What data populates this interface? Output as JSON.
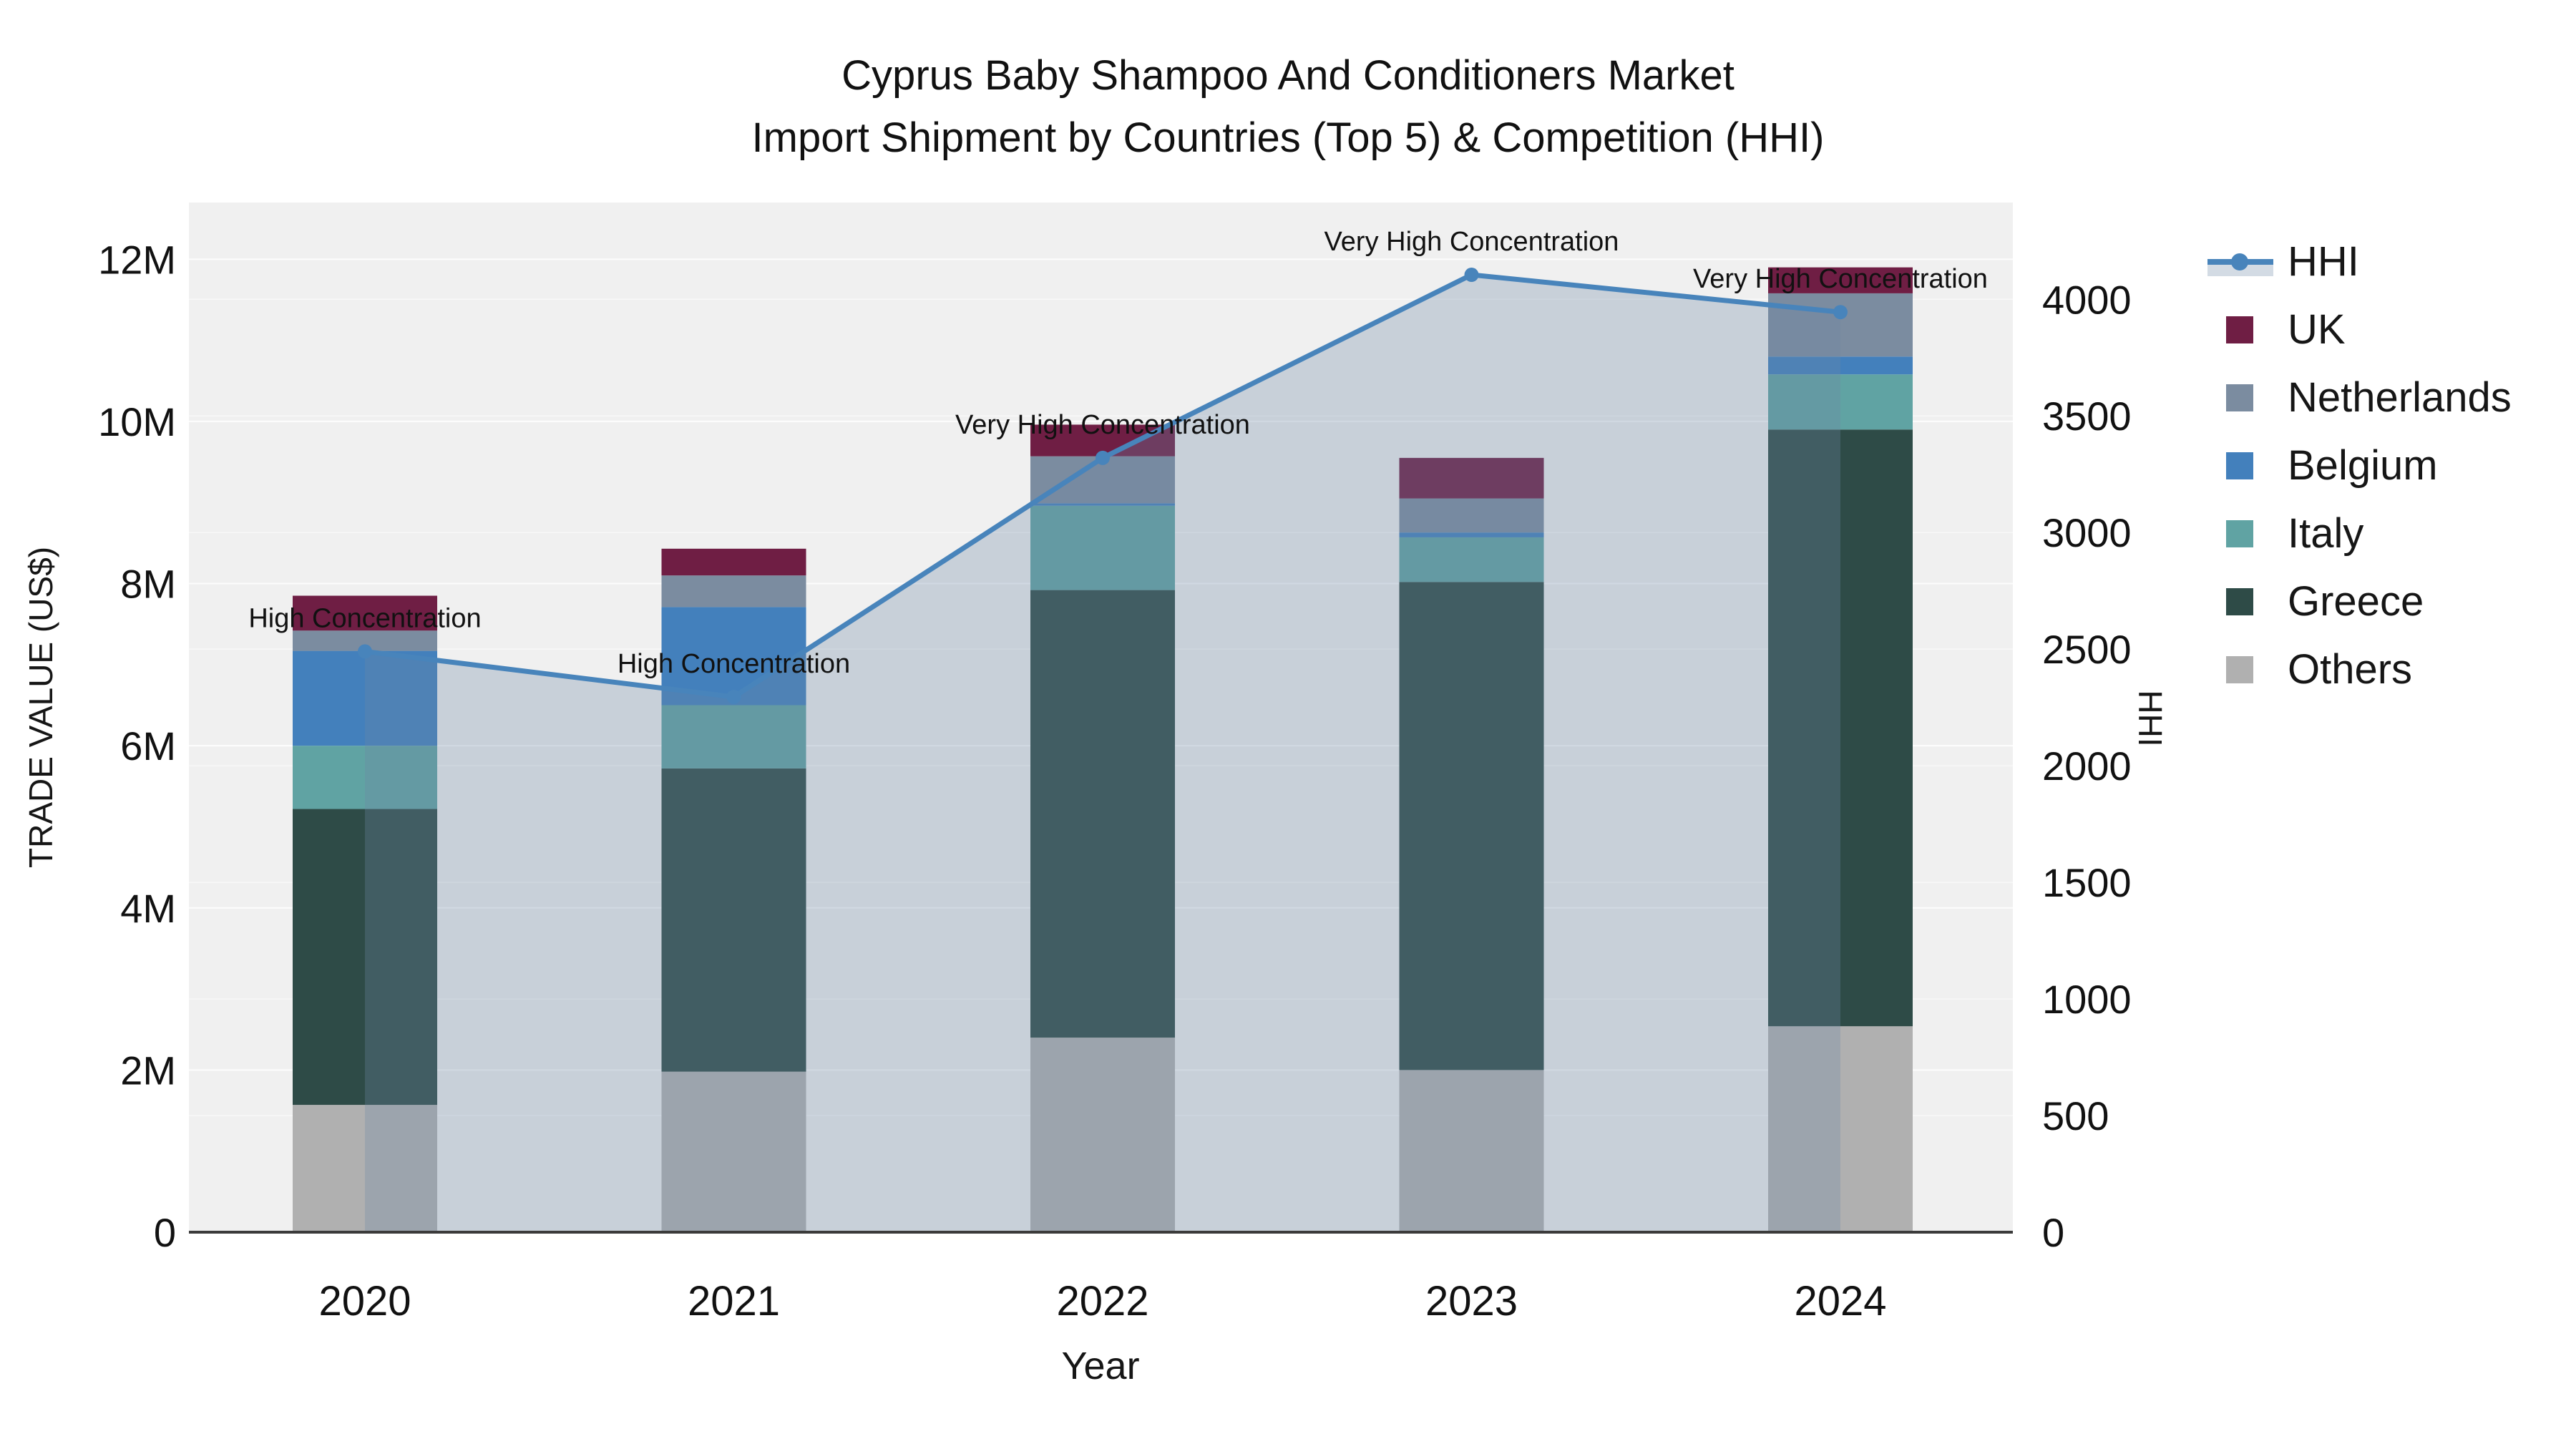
{
  "title": {
    "line1": "Cyprus Baby Shampoo And Conditioners Market",
    "line2": "Import Shipment by Countries (Top 5) & Competition (HHI)"
  },
  "axes": {
    "x": {
      "label": "Year",
      "categories": [
        "2020",
        "2021",
        "2022",
        "2023",
        "2024"
      ]
    },
    "y_left": {
      "label": "TRADE VALUE (US$)",
      "ticks": [
        "0",
        "2M",
        "4M",
        "6M",
        "8M",
        "10M",
        "12M"
      ],
      "tick_values_m": [
        0,
        2,
        4,
        6,
        8,
        10,
        12
      ],
      "max_m": 12.7
    },
    "y_right": {
      "label": "HHI",
      "ticks": [
        "0",
        "500",
        "1000",
        "1500",
        "2000",
        "2500",
        "3000",
        "3500",
        "4000"
      ],
      "tick_values": [
        0,
        500,
        1000,
        1500,
        2000,
        2500,
        3000,
        3500,
        4000
      ],
      "max": 4415
    }
  },
  "legend": {
    "position": "right",
    "items": [
      {
        "label": "HHI",
        "type": "line",
        "color": "#4884bb"
      },
      {
        "label": "UK",
        "type": "swatch",
        "color": "#6f1e44"
      },
      {
        "label": "Netherlands",
        "type": "swatch",
        "color": "#7b8ca0"
      },
      {
        "label": "Belgium",
        "type": "swatch",
        "color": "#4380bc"
      },
      {
        "label": "Italy",
        "type": "swatch",
        "color": "#60a3a3"
      },
      {
        "label": "Greece",
        "type": "swatch",
        "color": "#2e4b47"
      },
      {
        "label": "Others",
        "type": "swatch",
        "color": "#b0b0b0"
      }
    ]
  },
  "colors": {
    "plot_background": "#f0f0f0",
    "gridline": "rgba(255,255,255,0.85)",
    "axis_spine": "#3b3b3b",
    "hhi_line": "#4884bb",
    "hhi_fill": "rgba(110,135,165,0.30)",
    "annotation_text": "#111111"
  },
  "chart_data": {
    "type": "combo",
    "subtypes": [
      "stacked-bar",
      "line-area"
    ],
    "title": "Cyprus Baby Shampoo And Conditioners Market — Import Shipment by Countries (Top 5) & Competition (HHI)",
    "xlabel": "Year",
    "ylabel_left": "TRADE VALUE (US$)",
    "ylabel_right": "HHI",
    "categories": [
      "2020",
      "2021",
      "2022",
      "2023",
      "2024"
    ],
    "bar_value_unit": "US$ millions (left axis)",
    "bar_stack_order_bottom_to_top": [
      "Others",
      "Greece",
      "Italy",
      "Belgium",
      "Netherlands",
      "UK"
    ],
    "bar_series": [
      {
        "name": "Others",
        "color": "#b0b0b0",
        "values": [
          1.57,
          1.98,
          2.4,
          2.0,
          2.54
        ]
      },
      {
        "name": "Greece",
        "color": "#2e4b47",
        "values": [
          3.65,
          3.74,
          5.52,
          6.02,
          7.36
        ]
      },
      {
        "name": "Italy",
        "color": "#60a3a3",
        "values": [
          0.78,
          0.78,
          1.04,
          0.55,
          0.68
        ]
      },
      {
        "name": "Belgium",
        "color": "#4380bc",
        "values": [
          1.17,
          1.21,
          0.03,
          0.06,
          0.22
        ]
      },
      {
        "name": "Netherlands",
        "color": "#7b8ca0",
        "values": [
          0.25,
          0.39,
          0.58,
          0.42,
          0.78
        ]
      },
      {
        "name": "UK",
        "color": "#6f1e44",
        "values": [
          0.43,
          0.33,
          0.39,
          0.5,
          0.32
        ]
      }
    ],
    "bar_totals_m": [
      7.85,
      8.43,
      9.96,
      9.55,
      11.9
    ],
    "line_series": {
      "name": "HHI",
      "axis": "right",
      "color": "#4884bb",
      "fill": "rgba(110,135,165,0.30)",
      "values": [
        2490,
        2295,
        3320,
        4105,
        3945
      ]
    },
    "annotations": [
      {
        "category": "2020",
        "text": "High Concentration"
      },
      {
        "category": "2021",
        "text": "High Concentration"
      },
      {
        "category": "2022",
        "text": "Very High Concentration"
      },
      {
        "category": "2023",
        "text": "Very High Concentration"
      },
      {
        "category": "2024",
        "text": "Very High Concentration"
      }
    ],
    "ylim_left_m": [
      0,
      12.7
    ],
    "ylim_right": [
      0,
      4415
    ],
    "grid": true,
    "legend_position": "right"
  }
}
